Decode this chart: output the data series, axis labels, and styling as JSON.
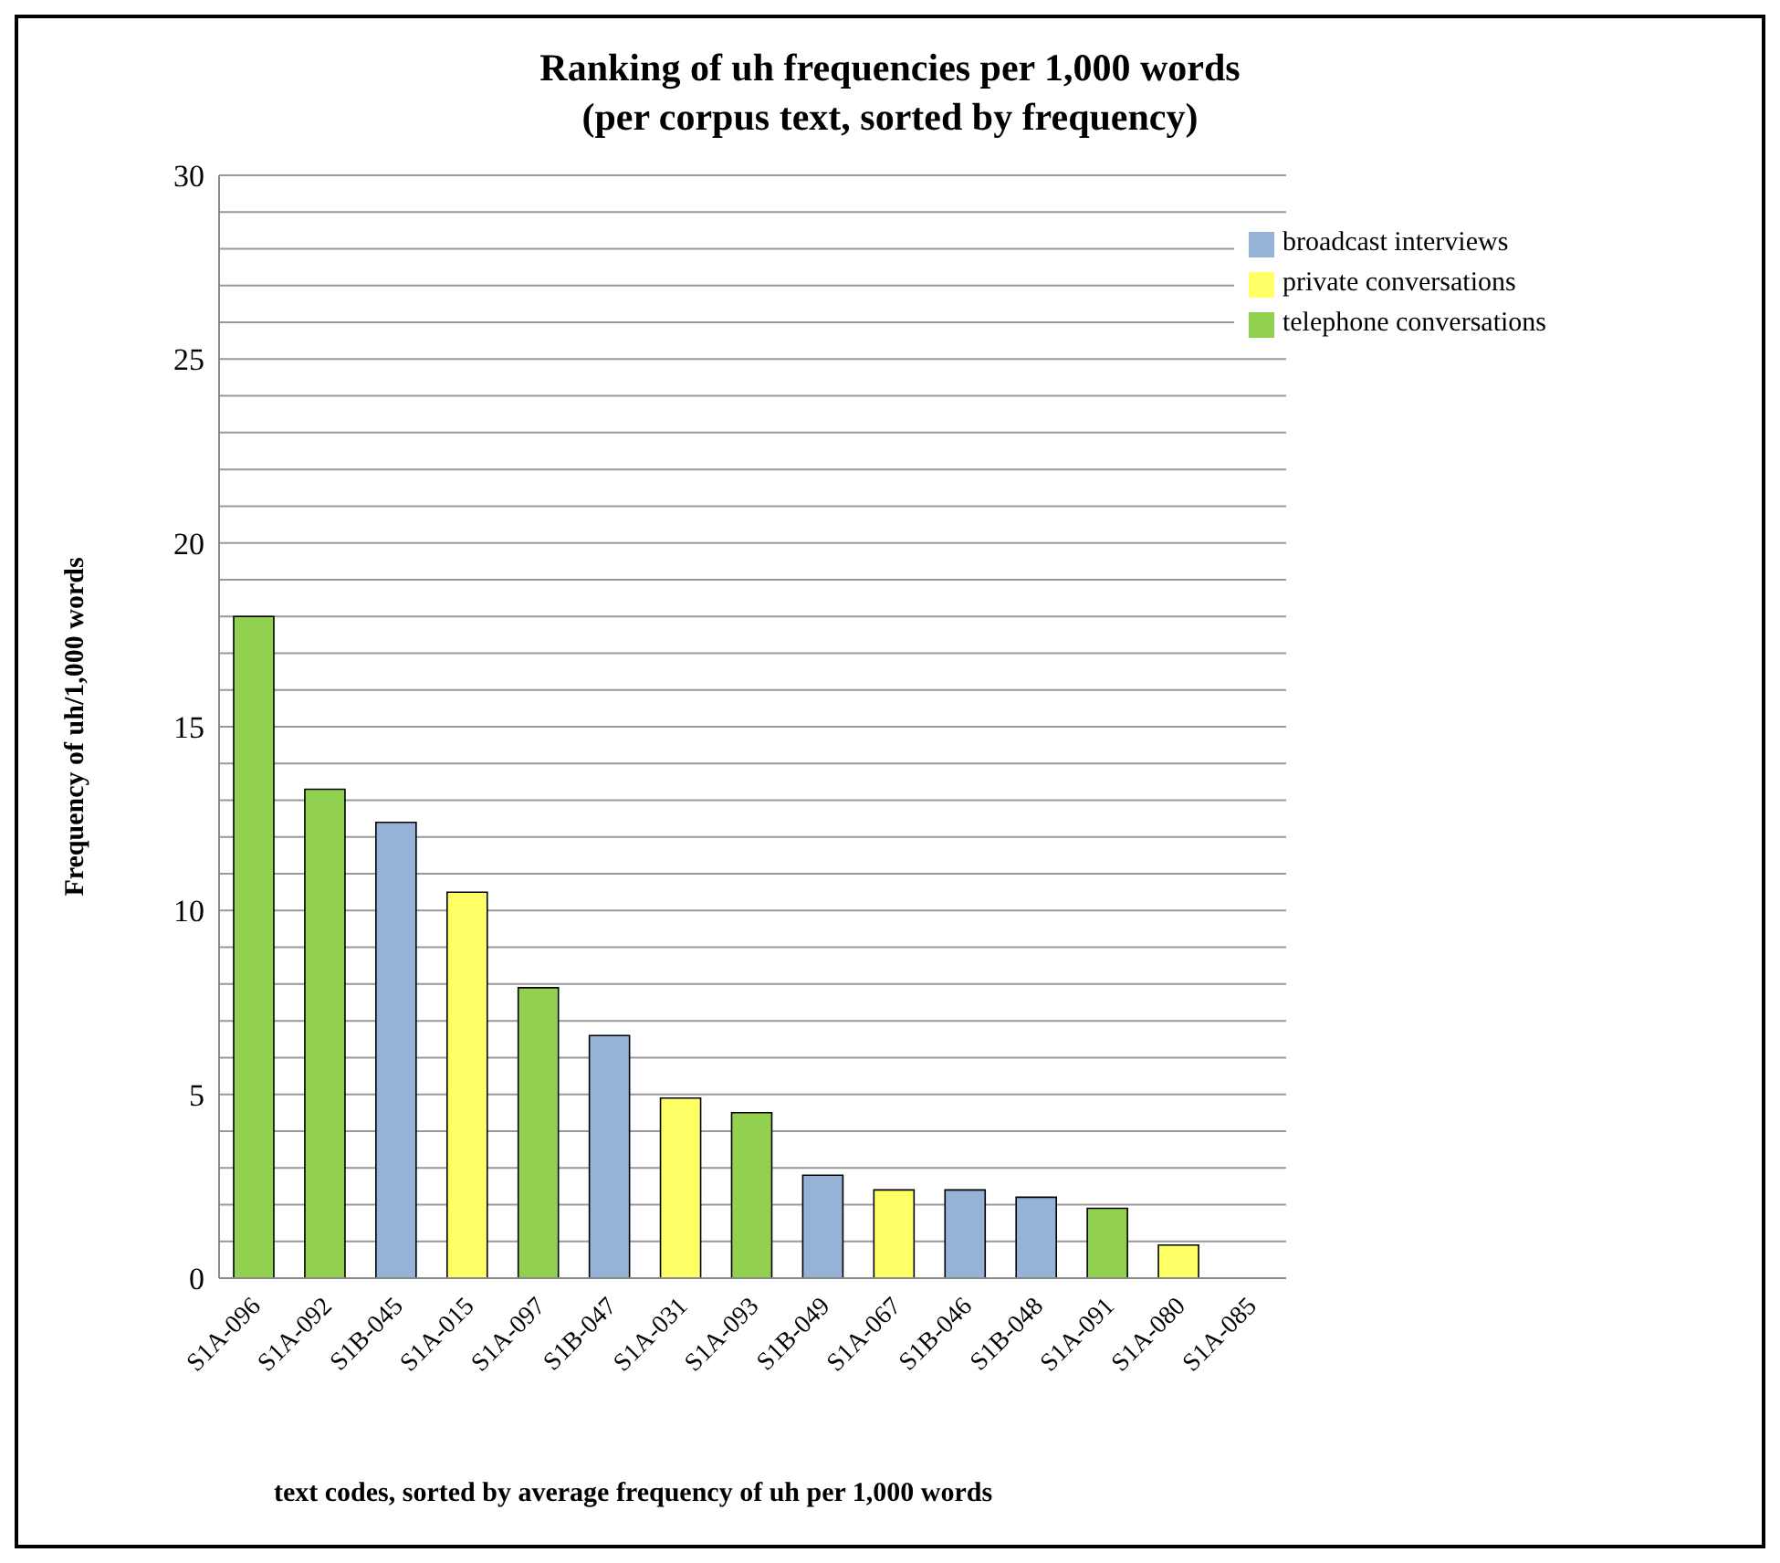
{
  "chart_data": {
    "type": "bar",
    "title": "Ranking of uh frequencies per 1,000 words\n(per corpus text, sorted by frequency)",
    "xlabel": "text codes, sorted by average frequency of uh per 1,000 words",
    "ylabel": "Frequency of uh/1,000 words",
    "categories": [
      "S1A-096",
      "S1A-092",
      "S1B-045",
      "S1A-015",
      "S1A-097",
      "S1B-047",
      "S1A-031",
      "S1A-093",
      "S1B-049",
      "S1A-067",
      "S1B-046",
      "S1B-048",
      "S1A-091",
      "S1A-080",
      "S1A-085"
    ],
    "stacked": true,
    "series": [
      {
        "name": "private conversations",
        "color": "#ffff66",
        "values": [
          null,
          null,
          null,
          10.5,
          null,
          null,
          4.9,
          null,
          null,
          2.4,
          null,
          null,
          null,
          0.9,
          0
        ]
      },
      {
        "name": "telephone conversations",
        "color": "#92d050",
        "values": [
          18,
          13.3,
          null,
          null,
          7.9,
          null,
          null,
          4.5,
          null,
          null,
          null,
          null,
          1.9,
          null,
          null
        ]
      },
      {
        "name": "broadcast interviews",
        "color": "#95b3d7",
        "values": [
          null,
          null,
          12.4,
          null,
          null,
          6.6,
          null,
          null,
          2.8,
          null,
          2.4,
          2.2,
          null,
          null,
          null
        ]
      }
    ],
    "ylim": [
      0,
      30
    ],
    "yticks": [
      0,
      {
        "value": 1,
        "label": null
      },
      {
        "value": 2,
        "label": null
      },
      {
        "value": 3,
        "label": null
      },
      {
        "value": 4,
        "label": null
      },
      5,
      {
        "value": 6,
        "label": null
      },
      {
        "value": 7,
        "label": null
      },
      {
        "value": 8,
        "label": null
      },
      {
        "value": 9,
        "label": null
      },
      10,
      {
        "value": 11,
        "label": null
      },
      {
        "value": 12,
        "label": null
      },
      {
        "value": 13,
        "label": null
      },
      {
        "value": 14,
        "label": null
      },
      15,
      {
        "value": 16,
        "label": null
      },
      {
        "value": 17,
        "label": null
      },
      {
        "value": 18,
        "label": null
      },
      {
        "value": 19,
        "label": null
      },
      20,
      {
        "value": 21,
        "label": null
      },
      {
        "value": 22,
        "label": null
      },
      {
        "value": 23,
        "label": null
      },
      {
        "value": 24,
        "label": null
      },
      25,
      {
        "value": 26,
        "label": null
      },
      {
        "value": 27,
        "label": null
      },
      {
        "value": 28,
        "label": null
      },
      {
        "value": 29,
        "label": null
      },
      30
    ],
    "grid": "y",
    "legend": "top right"
  }
}
